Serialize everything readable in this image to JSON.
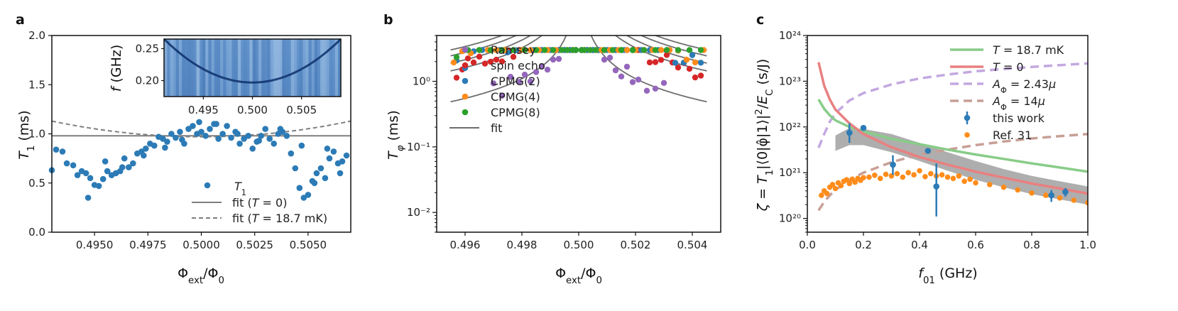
{
  "colors": {
    "blue": "#2c7bb6",
    "red": "#d62728",
    "orange": "#ff8c1a",
    "green": "#2ca02c",
    "purple": "#9467bd",
    "gray": "#7f7f7f",
    "band": "#9a9a9a",
    "lightgreen": "#88cc88",
    "lightred": "#e98080",
    "lightpurple": "#c3a8e0",
    "lightbrown": "#c79f96"
  },
  "chart_data": [
    {
      "panel": "a",
      "type": "scatter",
      "xlabel": "Φext/Φ0",
      "ylabel": "T1 (ms)",
      "xlim": [
        0.493,
        0.507
      ],
      "ylim": [
        0.0,
        2.0
      ],
      "xticks": [
        "0.4950",
        "0.4975",
        "0.5000",
        "0.5025",
        "0.5050"
      ],
      "yticks": [
        "0.0",
        "0.5",
        "1.0",
        "1.5",
        "2.0"
      ],
      "legend": [
        "T1",
        "fit (T = 0)",
        "fit (T = 18.7 mK)"
      ],
      "series": [
        {
          "name": "T1",
          "kind": "points",
          "x": [
            0.493,
            0.4932,
            0.4935,
            0.4937,
            0.494,
            0.4942,
            0.4944,
            0.4946,
            0.4948,
            0.495,
            0.4952,
            0.4954,
            0.4956,
            0.4958,
            0.496,
            0.4962,
            0.4964,
            0.4966,
            0.4968,
            0.497,
            0.4972,
            0.4974,
            0.4976,
            0.4978,
            0.498,
            0.4982,
            0.4984,
            0.4986,
            0.4988,
            0.499,
            0.4992,
            0.4994,
            0.4996,
            0.4998,
            0.5,
            0.5002,
            0.5004,
            0.5006,
            0.5008,
            0.501,
            0.5012,
            0.5014,
            0.5016,
            0.5018,
            0.502,
            0.5022,
            0.5024,
            0.5026,
            0.5028,
            0.503,
            0.5032,
            0.5034,
            0.5036,
            0.5038,
            0.504,
            0.5042,
            0.5044,
            0.5046,
            0.5048,
            0.505,
            0.5052,
            0.5054,
            0.5056,
            0.5058,
            0.506,
            0.5062,
            0.5064,
            0.5066,
            0.5068,
            0.4947,
            0.4955,
            0.4963,
            0.4973,
            0.4983,
            0.4991,
            0.4999,
            0.5007,
            0.5017,
            0.5027,
            0.5037,
            0.5047,
            0.5053,
            0.5059,
            0.5065
          ],
          "y": [
            0.63,
            0.84,
            0.82,
            0.7,
            0.68,
            0.58,
            0.62,
            0.6,
            0.55,
            0.48,
            0.47,
            0.54,
            0.62,
            0.58,
            0.6,
            0.62,
            0.75,
            0.66,
            0.7,
            0.8,
            0.82,
            0.85,
            0.9,
            0.88,
            0.97,
            0.95,
            0.92,
            1.0,
            0.96,
            1.02,
            0.9,
            1.05,
            1.08,
            1.0,
            1.02,
            0.98,
            1.05,
            1.1,
            0.95,
            1.0,
            1.08,
            0.96,
            1.02,
            0.9,
            0.95,
            0.98,
            0.85,
            0.92,
            0.98,
            1.05,
            0.95,
            0.9,
            1.0,
            1.02,
            0.98,
            0.8,
            0.65,
            0.45,
            0.35,
            0.38,
            0.52,
            0.6,
            0.65,
            0.55,
            0.75,
            0.82,
            0.7,
            0.72,
            0.78,
            0.35,
            0.72,
            0.66,
            0.78,
            0.86,
            0.94,
            1.12,
            1.1,
            1.0,
            0.93,
            1.05,
            0.88,
            0.5,
            0.85,
            0.6
          ]
        },
        {
          "name": "fit (T = 0)",
          "kind": "hline",
          "y": 0.98
        },
        {
          "name": "fit (T = 18.7 mK)",
          "kind": "parabola",
          "center": 0.5,
          "min": 0.97,
          "edge": 1.13
        }
      ],
      "inset": {
        "ylabel": "f (GHz)",
        "xlim": [
          0.491,
          0.509
        ],
        "ylim": [
          0.175,
          0.265
        ],
        "xticks": [
          "0.495",
          "0.500",
          "0.505"
        ],
        "yticks": [
          "0.20",
          "0.25"
        ]
      }
    },
    {
      "panel": "b",
      "type": "scatter",
      "xlabel": "Φext/Φ0",
      "ylabel": "Tφ (ms)",
      "xlim": [
        0.495,
        0.505
      ],
      "ylim": [
        0.005,
        5.0
      ],
      "yscale": "log",
      "xticks": [
        "0.496",
        "0.498",
        "0.500",
        "0.502",
        "0.504"
      ],
      "yticks": [
        "10⁻²",
        "10⁻¹",
        "10⁰"
      ],
      "legend": [
        "Ramsey",
        "spin echo",
        "CPMG(2)",
        "CPMG(4)",
        "CPMG(8)",
        "fit"
      ],
      "series": [
        {
          "name": "Ramsey",
          "amplitude": 0.0022,
          "floor": 0.0,
          "sym": [
            0.497,
            0.4973,
            0.4976,
            0.4979,
            0.4981,
            0.4983,
            0.4985,
            0.4987,
            0.4989,
            0.4991,
            0.4993,
            0.4995,
            0.4997,
            0.4998,
            0.4999
          ]
        },
        {
          "name": "spin echo",
          "amplitude": 0.0065,
          "floor": 0.0,
          "sym": [
            0.4957,
            0.4959,
            0.4961,
            0.4963,
            0.4965,
            0.4967,
            0.4969,
            0.4971,
            0.4973,
            0.4975,
            0.4977,
            0.4979,
            0.4981,
            0.4983,
            0.4985,
            0.4987,
            0.4989,
            0.4991,
            0.4993,
            0.4995,
            0.4997,
            0.4998,
            0.4999
          ]
        },
        {
          "name": "CPMG(2)",
          "amplitude": 0.0085,
          "floor": 0.01,
          "sym": [
            0.4957,
            0.496,
            0.4963,
            0.4966,
            0.4969,
            0.4972,
            0.4975,
            0.4978,
            0.4981,
            0.4984,
            0.4987,
            0.499,
            0.4993,
            0.4995,
            0.4997,
            0.4999
          ]
        },
        {
          "name": "CPMG(4)",
          "amplitude": 0.011,
          "floor": 0.012,
          "sym": [
            0.4956,
            0.4959,
            0.4962,
            0.4965,
            0.4968,
            0.4971,
            0.4974,
            0.4977,
            0.498,
            0.4983,
            0.4986,
            0.4989,
            0.4992,
            0.4994,
            0.4996,
            0.4998
          ]
        },
        {
          "name": "CPMG(8)",
          "amplitude": 0.0135,
          "floor": 0.02,
          "sym": [
            0.4957,
            0.4961,
            0.4965,
            0.4969,
            0.4973,
            0.4977,
            0.4981,
            0.4985,
            0.4988,
            0.4991,
            0.4994,
            0.4996,
            0.4998,
            0.4999
          ]
        }
      ]
    },
    {
      "panel": "c",
      "type": "line",
      "xlabel": "f01 (GHz)",
      "ylabel": "ζ = T1|⟨0|φ̂|1⟩|²/EC (s/J)",
      "xlim": [
        0.0,
        1.0
      ],
      "ylim": [
        5e+19,
        1e+24
      ],
      "yscale": "log",
      "xticks": [
        "0.0",
        "0.2",
        "0.4",
        "0.6",
        "0.8",
        "1.0"
      ],
      "yticks": [
        "10²⁰",
        "10²¹",
        "10²²",
        "10²³",
        "10²⁴"
      ],
      "legend": [
        "T = 18.7 mK",
        "T = 0",
        "AΦ = 2.43μ",
        "AΦ = 14μ",
        "this work",
        "Ref. 31"
      ],
      "series": [
        {
          "name": "T = 18.7 mK",
          "x": [
            0.04,
            0.06,
            0.08,
            0.1,
            0.15,
            0.2,
            0.3,
            0.4,
            0.5,
            0.6,
            0.7,
            0.8,
            0.9,
            1.0
          ],
          "y": [
            4e+22,
            2.5e+22,
            1.8e+22,
            1.4e+22,
            1e+22,
            8e+21,
            5.5e+21,
            4.2e+21,
            3.2e+21,
            2.5e+21,
            2e+21,
            1.6e+21,
            1.3e+21,
            1.05e+21
          ]
        },
        {
          "name": "T = 0",
          "x": [
            0.04,
            0.06,
            0.08,
            0.1,
            0.15,
            0.2,
            0.3,
            0.4,
            0.5,
            0.6,
            0.7,
            0.8,
            0.9,
            1.0
          ],
          "y": [
            2.6e+23,
            8e+22,
            4e+22,
            2.4e+22,
            1.2e+22,
            7e+21,
            3.6e+21,
            2.2e+21,
            1.5e+21,
            1.05e+21,
            7.8e+20,
            5.8e+20,
            4.5e+20,
            3.5e+20
          ]
        },
        {
          "name": "AΦ = 2.43μ",
          "x": [
            0.04,
            0.06,
            0.08,
            0.1,
            0.15,
            0.2,
            0.3,
            0.4,
            0.5,
            0.6,
            0.7,
            0.8,
            0.9,
            1.0
          ],
          "y": [
            3.5e+21,
            7e+21,
            1.3e+22,
            2e+22,
            3.8e+22,
            5.5e+22,
            8.5e+22,
            1.15e+23,
            1.4e+23,
            1.65e+23,
            1.85e+23,
            2.05e+23,
            2.25e+23,
            2.45e+23
          ]
        },
        {
          "name": "AΦ = 14μ",
          "x": [
            0.04,
            0.06,
            0.08,
            0.1,
            0.15,
            0.2,
            0.3,
            0.4,
            0.5,
            0.6,
            0.7,
            0.8,
            0.9,
            1.0
          ],
          "y": [
            1.5e+20,
            2.3e+20,
            3.2e+20,
            4.2e+20,
            7e+20,
            1e+21,
            1.7e+21,
            2.5e+21,
            3.2e+21,
            4e+21,
            4.8e+21,
            5.6e+21,
            6.3e+21,
            7e+21
          ]
        },
        {
          "name": "band",
          "x": [
            0.1,
            0.15,
            0.2,
            0.3,
            0.4,
            0.5,
            0.6,
            0.7,
            0.8,
            0.9,
            1.0
          ],
          "upper": [
            6.5e+21,
            9.5e+21,
            9e+21,
            7e+21,
            4.5e+21,
            2.8e+21,
            1.8e+21,
            1.2e+21,
            8.5e+20,
            6.5e+20,
            5e+20
          ],
          "lower": [
            3e+21,
            4e+21,
            4e+21,
            2.8e+21,
            1.8e+21,
            1.1e+21,
            7e+20,
            4.8e+20,
            3.4e+20,
            2.6e+20,
            2e+20
          ]
        },
        {
          "name": "this work",
          "x": [
            0.15,
            0.2,
            0.305,
            0.43,
            0.46,
            0.87,
            0.92
          ],
          "y": [
            7.5e+21,
            9.5e+21,
            1.5e+21,
            3e+21,
            5e+20,
            3.2e+20,
            3.8e+20
          ],
          "yerr_lo": [
            4.5e+21,
            9e+21,
            9e+20,
            3e+21,
            1.1e+20,
            2.3e+20,
            3e+20
          ],
          "yerr_hi": [
            1.2e+22,
            1e+22,
            2.4e+21,
            3e+21,
            1.6e+21,
            4.2e+20,
            4.6e+20
          ]
        },
        {
          "name": "Ref. 31",
          "x": [
            0.05,
            0.06,
            0.07,
            0.08,
            0.09,
            0.1,
            0.11,
            0.12,
            0.13,
            0.14,
            0.15,
            0.16,
            0.17,
            0.18,
            0.19,
            0.2,
            0.22,
            0.24,
            0.26,
            0.28,
            0.3,
            0.32,
            0.34,
            0.36,
            0.38,
            0.4,
            0.42,
            0.44,
            0.46,
            0.48,
            0.5,
            0.52,
            0.54,
            0.56,
            0.58,
            0.6,
            0.65,
            0.7,
            0.75,
            0.8,
            0.85,
            0.9,
            0.95,
            1.0
          ],
          "y": [
            3.2e+20,
            4e+20,
            3.5e+20,
            4.8e+20,
            5.5e+20,
            4.5e+20,
            6e+20,
            5.2e+20,
            6.5e+20,
            7e+20,
            5.8e+20,
            7.2e+20,
            6.2e+20,
            7.5e+20,
            6.8e+20,
            7.8e+20,
            8e+20,
            8.8e+20,
            7.5e+20,
            9.2e+20,
            8.5e+20,
            9.5e+20,
            8e+20,
            1e+21,
            9e+20,
            1.1e+21,
            8.2e+20,
            9.5e+20,
            8.5e+20,
            9e+20,
            8e+20,
            7.5e+20,
            8.5e+20,
            6.5e+20,
            7.2e+20,
            6e+20,
            5.5e+20,
            4.8e+20,
            4.2e+20,
            3.6e+20,
            3.2e+20,
            2.8e+20,
            2.5e+20,
            2.2e+20
          ]
        }
      ]
    }
  ]
}
